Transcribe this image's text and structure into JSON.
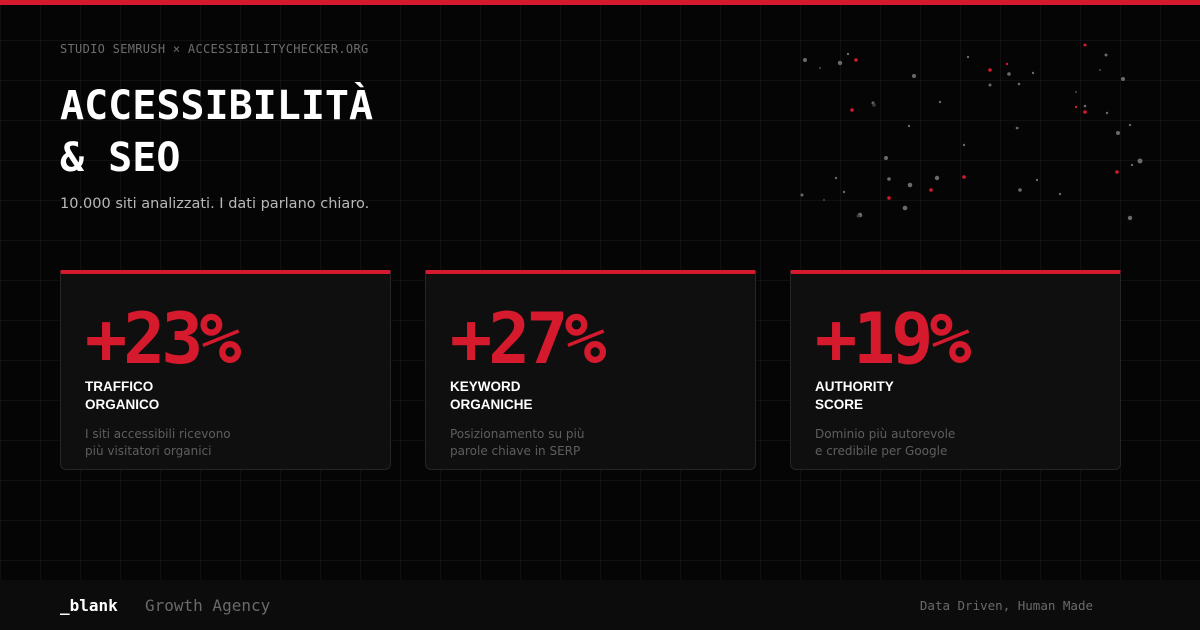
{
  "eyebrow": "STUDIO SEMRUSH × ACCESSIBILITYCHECKER.ORG",
  "title": {
    "line1": "ACCESSIBILITÀ",
    "line2": "& SEO"
  },
  "subtitle": "10.000 siti analizzati. I dati parlano chiaro.",
  "cards": [
    {
      "stat": "+23%",
      "label_line1": "TRAFFICO",
      "label_line2": "ORGANICO",
      "desc_line1": "I siti accessibili ricevono",
      "desc_line2": "più visitatori organici"
    },
    {
      "stat": "+27%",
      "label_line1": "KEYWORD",
      "label_line2": "ORGANICHE",
      "desc_line1": "Posizionamento su più",
      "desc_line2": "parole chiave in SERP"
    },
    {
      "stat": "+19%",
      "label_line1": "AUTHORITY",
      "label_line2": "SCORE",
      "desc_line1": "Dominio più autorevole",
      "desc_line2": "e credibile per Google"
    }
  ],
  "footer": {
    "brand": "_blank",
    "tagline": "Growth Agency",
    "motto": "Data Driven, Human Made"
  },
  "colors": {
    "accent": "#d41a2c",
    "background": "#050505",
    "card": "#0f0f10",
    "footer": "#0c0c0c"
  }
}
